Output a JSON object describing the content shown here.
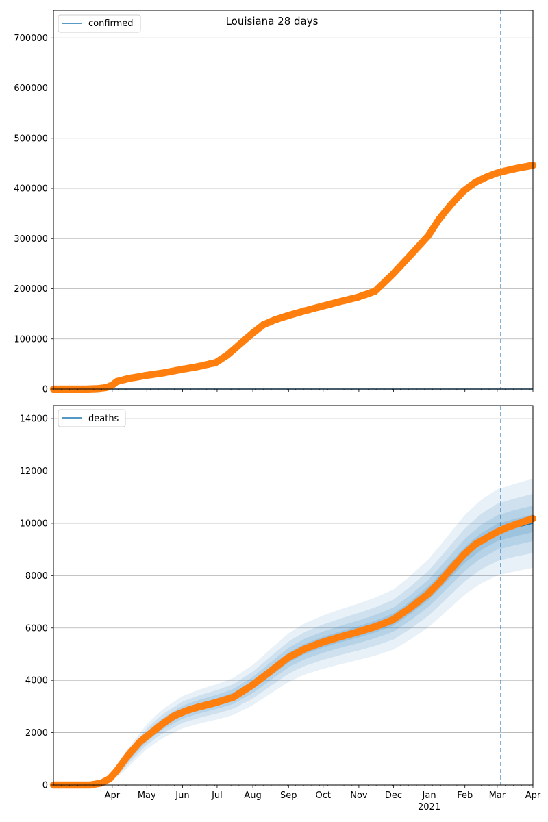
{
  "figure": {
    "title": "Louisiana 28 days"
  },
  "colors": {
    "observed": "#ff7f0e",
    "model": "#1f77b4",
    "band": "#1f77b4",
    "grid": "#b0b0b0",
    "vline": "#1f77b4"
  },
  "x_axis": {
    "range": [
      "2020-02-10",
      "2021-04-01"
    ],
    "ticks": [
      {
        "date": "2020-04-01",
        "label": "Apr"
      },
      {
        "date": "2020-05-01",
        "label": "May"
      },
      {
        "date": "2020-06-01",
        "label": "Jun"
      },
      {
        "date": "2020-07-01",
        "label": "Jul"
      },
      {
        "date": "2020-08-01",
        "label": "Aug"
      },
      {
        "date": "2020-09-01",
        "label": "Sep"
      },
      {
        "date": "2020-10-01",
        "label": "Oct"
      },
      {
        "date": "2020-11-01",
        "label": "Nov"
      },
      {
        "date": "2020-12-01",
        "label": "Dec"
      },
      {
        "date": "2021-01-01",
        "label": "Jan"
      },
      {
        "date": "2021-02-01",
        "label": "Feb"
      },
      {
        "date": "2021-03-01",
        "label": "Mar"
      },
      {
        "date": "2021-04-01",
        "label": "Apr"
      }
    ],
    "year_label": {
      "date": "2021-01-01",
      "label": "2021"
    },
    "forecast_start": "2021-03-04"
  },
  "chart_data": [
    {
      "type": "line",
      "panel": "confirmed",
      "legend": [
        "confirmed"
      ],
      "legend_position": "upper-left",
      "grid": true,
      "ylim": [
        0,
        755000
      ],
      "yticks": [
        0,
        100000,
        200000,
        300000,
        400000,
        500000,
        600000,
        700000
      ],
      "observed": [
        [
          "2020-02-10",
          0
        ],
        [
          "2020-03-09",
          0
        ],
        [
          "2020-03-20",
          1000
        ],
        [
          "2020-03-27",
          3000
        ],
        [
          "2020-04-01",
          8000
        ],
        [
          "2020-04-05",
          15000
        ],
        [
          "2020-04-15",
          21000
        ],
        [
          "2020-04-30",
          27000
        ],
        [
          "2020-05-15",
          32000
        ],
        [
          "2020-05-31",
          39000
        ],
        [
          "2020-06-15",
          45000
        ],
        [
          "2020-06-30",
          53000
        ],
        [
          "2020-07-10",
          68000
        ],
        [
          "2020-07-20",
          88000
        ],
        [
          "2020-07-31",
          110000
        ],
        [
          "2020-08-10",
          128000
        ],
        [
          "2020-08-20",
          138000
        ],
        [
          "2020-08-31",
          146000
        ],
        [
          "2020-09-15",
          156000
        ],
        [
          "2020-09-30",
          165000
        ],
        [
          "2020-10-15",
          174000
        ],
        [
          "2020-10-31",
          183000
        ],
        [
          "2020-11-15",
          195000
        ],
        [
          "2020-11-30",
          228000
        ],
        [
          "2020-12-15",
          265000
        ],
        [
          "2020-12-31",
          305000
        ],
        [
          "2021-01-10",
          340000
        ],
        [
          "2021-01-20",
          368000
        ],
        [
          "2021-01-31",
          395000
        ],
        [
          "2021-02-10",
          412000
        ],
        [
          "2021-02-20",
          423000
        ],
        [
          "2021-02-28",
          430000
        ],
        [
          "2021-03-10",
          436000
        ],
        [
          "2021-03-20",
          441000
        ],
        [
          "2021-04-01",
          446000
        ]
      ],
      "model": [
        [
          "2020-02-10",
          0
        ],
        [
          "2021-04-01",
          0
        ]
      ],
      "bands": []
    },
    {
      "type": "line",
      "panel": "deaths",
      "legend": [
        "deaths"
      ],
      "legend_position": "upper-left",
      "grid": true,
      "ylim": [
        0,
        14500
      ],
      "yticks": [
        0,
        2000,
        4000,
        6000,
        8000,
        10000,
        12000,
        14000
      ],
      "observed": [
        [
          "2020-02-10",
          0
        ],
        [
          "2020-03-13",
          0
        ],
        [
          "2020-03-23",
          80
        ],
        [
          "2020-03-30",
          250
        ],
        [
          "2020-04-05",
          550
        ],
        [
          "2020-04-15",
          1150
        ],
        [
          "2020-04-25",
          1650
        ],
        [
          "2020-05-05",
          2000
        ],
        [
          "2020-05-15",
          2350
        ],
        [
          "2020-05-25",
          2650
        ],
        [
          "2020-06-05",
          2850
        ],
        [
          "2020-06-15",
          2980
        ],
        [
          "2020-06-30",
          3150
        ],
        [
          "2020-07-15",
          3350
        ],
        [
          "2020-07-31",
          3800
        ],
        [
          "2020-08-15",
          4300
        ],
        [
          "2020-08-31",
          4850
        ],
        [
          "2020-09-15",
          5200
        ],
        [
          "2020-09-30",
          5450
        ],
        [
          "2020-10-15",
          5650
        ],
        [
          "2020-10-31",
          5850
        ],
        [
          "2020-11-15",
          6050
        ],
        [
          "2020-11-30",
          6300
        ],
        [
          "2020-12-15",
          6750
        ],
        [
          "2020-12-31",
          7300
        ],
        [
          "2021-01-10",
          7750
        ],
        [
          "2021-01-20",
          8250
        ],
        [
          "2021-01-31",
          8800
        ],
        [
          "2021-02-10",
          9200
        ],
        [
          "2021-02-20",
          9450
        ],
        [
          "2021-02-28",
          9650
        ],
        [
          "2021-03-10",
          9850
        ],
        [
          "2021-03-20",
          10000
        ],
        [
          "2021-04-01",
          10180
        ]
      ],
      "model": [
        [
          "2020-02-10",
          0
        ],
        [
          "2020-03-20",
          30
        ],
        [
          "2020-04-01",
          300
        ],
        [
          "2020-04-15",
          1050
        ],
        [
          "2020-05-01",
          1850
        ],
        [
          "2020-05-15",
          2350
        ],
        [
          "2020-06-01",
          2780
        ],
        [
          "2020-06-15",
          2990
        ],
        [
          "2020-07-01",
          3180
        ],
        [
          "2020-07-15",
          3380
        ],
        [
          "2020-08-01",
          3820
        ],
        [
          "2020-08-15",
          4300
        ],
        [
          "2020-09-01",
          4870
        ],
        [
          "2020-09-15",
          5200
        ],
        [
          "2020-10-01",
          5460
        ],
        [
          "2020-10-15",
          5650
        ],
        [
          "2020-11-01",
          5860
        ],
        [
          "2020-11-15",
          6050
        ],
        [
          "2020-12-01",
          6320
        ],
        [
          "2020-12-15",
          6750
        ],
        [
          "2021-01-01",
          7350
        ],
        [
          "2021-01-15",
          8000
        ],
        [
          "2021-02-01",
          8800
        ],
        [
          "2021-02-15",
          9300
        ],
        [
          "2021-03-01",
          9650
        ],
        [
          "2021-03-15",
          9820
        ],
        [
          "2021-04-01",
          10000
        ]
      ],
      "bands": [
        {
          "rel": 0.15,
          "abs": 200,
          "opacity": 0.1
        },
        {
          "rel": 0.1,
          "abs": 130,
          "opacity": 0.12
        },
        {
          "rel": 0.06,
          "abs": 80,
          "opacity": 0.14
        },
        {
          "rel": 0.03,
          "abs": 40,
          "opacity": 0.16
        }
      ]
    }
  ]
}
